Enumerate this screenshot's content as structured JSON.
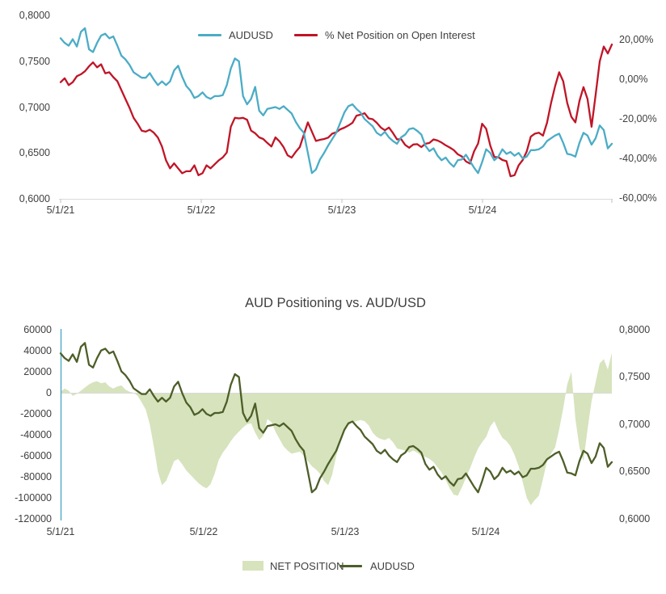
{
  "page": {
    "background": "#ffffff"
  },
  "chart_data": [
    {
      "type": "line",
      "title": "",
      "legend_position": "top",
      "grid": "off",
      "x_ticks": [
        "5/1/21",
        "5/1/22",
        "5/1/23",
        "5/1/24"
      ],
      "y_left": {
        "min": 0.6,
        "max": 0.8,
        "ticks": [
          "0,8000",
          "0,7500",
          "0,7000",
          "0,6500",
          "0,6000"
        ]
      },
      "y_right": {
        "min": -60,
        "max": 20,
        "ticks": [
          "20,00%",
          "0,00%",
          "-20,00%",
          "-40,00%",
          "-60,00%"
        ]
      },
      "series": [
        {
          "name": "AUDUSD",
          "axis": "left",
          "color": "#4BACC6",
          "values": [
            0.775,
            0.77,
            0.767,
            0.774,
            0.766,
            0.782,
            0.786,
            0.763,
            0.76,
            0.77,
            0.778,
            0.78,
            0.775,
            0.777,
            0.767,
            0.756,
            0.752,
            0.746,
            0.738,
            0.735,
            0.732,
            0.732,
            0.737,
            0.73,
            0.724,
            0.728,
            0.724,
            0.728,
            0.74,
            0.745,
            0.733,
            0.723,
            0.718,
            0.71,
            0.712,
            0.716,
            0.711,
            0.709,
            0.712,
            0.712,
            0.713,
            0.724,
            0.742,
            0.753,
            0.75,
            0.712,
            0.703,
            0.709,
            0.722,
            0.696,
            0.691,
            0.698,
            0.699,
            0.7,
            0.698,
            0.701,
            0.697,
            0.693,
            0.684,
            0.677,
            0.672,
            0.65,
            0.628,
            0.632,
            0.643,
            0.65,
            0.658,
            0.665,
            0.672,
            0.683,
            0.694,
            0.701,
            0.703,
            0.698,
            0.694,
            0.687,
            0.683,
            0.679,
            0.672,
            0.669,
            0.673,
            0.667,
            0.663,
            0.66,
            0.667,
            0.67,
            0.676,
            0.677,
            0.674,
            0.67,
            0.658,
            0.652,
            0.655,
            0.647,
            0.642,
            0.645,
            0.639,
            0.635,
            0.642,
            0.643,
            0.648,
            0.641,
            0.634,
            0.628,
            0.64,
            0.654,
            0.65,
            0.642,
            0.646,
            0.654,
            0.649,
            0.651,
            0.647,
            0.65,
            0.644,
            0.646,
            0.653,
            0.653,
            0.654,
            0.657,
            0.663,
            0.666,
            0.669,
            0.671,
            0.661,
            0.649,
            0.648,
            0.646,
            0.661,
            0.672,
            0.669,
            0.659,
            0.666,
            0.68,
            0.675,
            0.655,
            0.66
          ]
        },
        {
          "name": "% Net Position on Open Interest",
          "axis": "right",
          "color": "#C01527",
          "values": [
            -1.5,
            0.5,
            -3.0,
            -1.5,
            1.5,
            2.5,
            4.0,
            6.5,
            8.5,
            6.0,
            7.5,
            3.0,
            3.5,
            1.0,
            -1.0,
            -5.5,
            -10.0,
            -14.5,
            -19.5,
            -22.5,
            -26.0,
            -26.5,
            -25.5,
            -27.0,
            -29.5,
            -34.0,
            -41.0,
            -45.0,
            -42.5,
            -45.0,
            -47.5,
            -46.5,
            -46.5,
            -43.5,
            -48.5,
            -47.5,
            -43.5,
            -45.0,
            -43.0,
            -41.0,
            -39.5,
            -37.0,
            -24.0,
            -19.5,
            -19.8,
            -19.5,
            -20.5,
            -26.0,
            -27.3,
            -29.4,
            -30.2,
            -32.2,
            -34.0,
            -29.4,
            -31.4,
            -34.3,
            -38.4,
            -39.6,
            -36.7,
            -34.3,
            -28.0,
            -21.8,
            -26.5,
            -31.2,
            -30.6,
            -30.2,
            -29.5,
            -27.5,
            -26.8,
            -25.3,
            -24.5,
            -23.4,
            -22.0,
            -18.4,
            -17.9,
            -17.2,
            -19.8,
            -20.2,
            -22.0,
            -24.4,
            -25.8,
            -24.4,
            -27.2,
            -30.4,
            -30.2,
            -33.2,
            -34.6,
            -33.0,
            -32.8,
            -34.3,
            -32.6,
            -32.2,
            -30.4,
            -31.0,
            -32.0,
            -33.4,
            -34.5,
            -35.8,
            -37.9,
            -39.0,
            -41.5,
            -42.6,
            -36.5,
            -32.5,
            -22.5,
            -25.0,
            -33.5,
            -39.3,
            -39.4,
            -40.8,
            -41.4,
            -49.0,
            -48.5,
            -43.5,
            -40.8,
            -36.5,
            -29.0,
            -27.5,
            -27.0,
            -28.5,
            -22.0,
            -12.0,
            -3.5,
            3.5,
            -1.0,
            -12.0,
            -19.0,
            -21.8,
            -11.0,
            -4.0,
            -10.0,
            -24.0,
            -8.0,
            9.0,
            16.5,
            13.0,
            17.5
          ]
        }
      ]
    },
    {
      "type": "combo",
      "title": "AUD Positioning vs. AUD/USD",
      "legend_position": "bottom",
      "grid": "off",
      "x_ticks": [
        "5/1/21",
        "5/1/22",
        "5/1/23",
        "5/1/24"
      ],
      "y_left": {
        "min": -120000,
        "max": 60000,
        "ticks": [
          "60000",
          "40000",
          "20000",
          "0",
          "-20000",
          "-40000",
          "-60000",
          "-80000",
          "-100000",
          "-120000"
        ]
      },
      "y_right": {
        "min": 0.6,
        "max": 0.8,
        "ticks": [
          "0,8000",
          "0,7500",
          "0,7000",
          "0,6500",
          "0,6000"
        ]
      },
      "series": [
        {
          "name": "NET POSITION",
          "type": "area",
          "axis": "left",
          "color": "#D6E3BD",
          "values": [
            1000,
            4000,
            2000,
            -3000,
            -1000,
            2000,
            5000,
            8000,
            10000,
            11000,
            9000,
            10000,
            6000,
            4000,
            6000,
            7000,
            3000,
            1000,
            0,
            -3000,
            -9000,
            -16000,
            -30000,
            -51000,
            -75000,
            -88000,
            -84000,
            -75000,
            -65000,
            -63000,
            -68000,
            -74000,
            -78000,
            -82000,
            -86000,
            -89000,
            -91000,
            -87000,
            -77000,
            -64000,
            -57000,
            -52000,
            -46000,
            -41000,
            -37000,
            -33000,
            -30000,
            -29000,
            -38000,
            -45000,
            -41000,
            -25000,
            -28000,
            -37000,
            -44000,
            -51000,
            -55000,
            -58000,
            -57000,
            -56000,
            -60000,
            -65000,
            -70000,
            -73000,
            -77000,
            -84000,
            -88000,
            -78000,
            -60000,
            -46000,
            -36000,
            -31000,
            -28000,
            -27000,
            -26000,
            -27000,
            -31000,
            -38000,
            -42000,
            -44000,
            -45000,
            -43000,
            -47000,
            -53000,
            -54000,
            -55000,
            -57000,
            -55000,
            -57000,
            -60000,
            -61000,
            -63000,
            -66000,
            -71000,
            -76000,
            -83000,
            -91000,
            -97000,
            -98000,
            -90000,
            -81000,
            -72000,
            -62000,
            -53000,
            -47000,
            -42000,
            -32000,
            -27000,
            -36000,
            -43000,
            -46000,
            -51000,
            -59000,
            -70000,
            -85000,
            -100000,
            -107000,
            -102000,
            -98000,
            -82000,
            -65000,
            -58000,
            -52000,
            -35000,
            -15000,
            8000,
            20000,
            -25000,
            -52000,
            -65000,
            -35000,
            -8000,
            10000,
            28000,
            32000,
            22000,
            38000
          ]
        },
        {
          "name": "AUDUSD",
          "type": "line",
          "axis": "right",
          "color": "#4D5E28",
          "values": [
            0.775,
            0.77,
            0.767,
            0.774,
            0.766,
            0.782,
            0.786,
            0.763,
            0.76,
            0.77,
            0.778,
            0.78,
            0.775,
            0.777,
            0.767,
            0.756,
            0.752,
            0.746,
            0.738,
            0.735,
            0.732,
            0.732,
            0.737,
            0.73,
            0.724,
            0.728,
            0.724,
            0.728,
            0.74,
            0.745,
            0.733,
            0.723,
            0.718,
            0.71,
            0.712,
            0.716,
            0.711,
            0.709,
            0.712,
            0.712,
            0.713,
            0.724,
            0.742,
            0.753,
            0.75,
            0.712,
            0.703,
            0.709,
            0.722,
            0.696,
            0.691,
            0.698,
            0.699,
            0.7,
            0.698,
            0.701,
            0.697,
            0.693,
            0.684,
            0.677,
            0.672,
            0.65,
            0.628,
            0.632,
            0.643,
            0.65,
            0.658,
            0.665,
            0.672,
            0.683,
            0.694,
            0.701,
            0.703,
            0.698,
            0.694,
            0.687,
            0.683,
            0.679,
            0.672,
            0.669,
            0.673,
            0.667,
            0.663,
            0.66,
            0.667,
            0.67,
            0.676,
            0.677,
            0.674,
            0.67,
            0.658,
            0.652,
            0.655,
            0.647,
            0.642,
            0.645,
            0.639,
            0.635,
            0.642,
            0.643,
            0.648,
            0.641,
            0.634,
            0.628,
            0.64,
            0.654,
            0.65,
            0.642,
            0.646,
            0.654,
            0.649,
            0.651,
            0.647,
            0.65,
            0.644,
            0.646,
            0.653,
            0.653,
            0.654,
            0.657,
            0.663,
            0.666,
            0.669,
            0.671,
            0.661,
            0.649,
            0.648,
            0.646,
            0.661,
            0.672,
            0.669,
            0.659,
            0.666,
            0.68,
            0.675,
            0.655,
            0.66
          ]
        }
      ]
    }
  ],
  "colors": {
    "axis_line": "#D9D9D9",
    "tick_mark": "#BFBFBF",
    "bottom_vertical_axis": "#4BACC6",
    "text": "#3f3f3f"
  }
}
